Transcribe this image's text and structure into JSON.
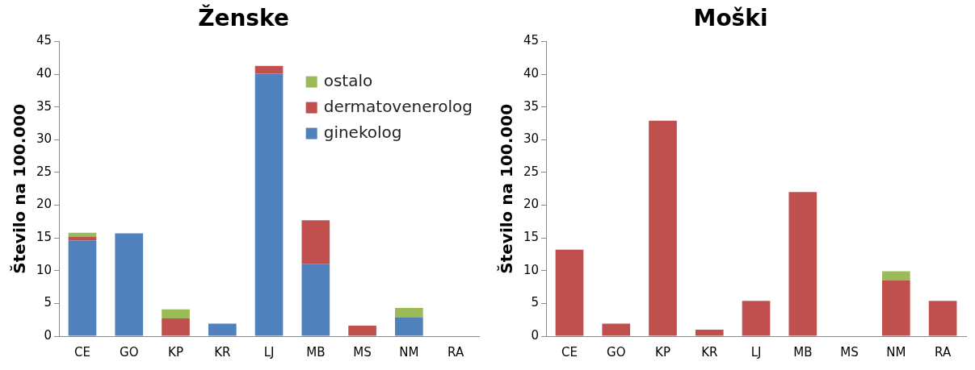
{
  "chart_data": [
    {
      "type": "bar",
      "title": "Ženske",
      "ylabel": "Število na 100.000",
      "categories": [
        "CE",
        "GO",
        "KP",
        "KR",
        "LJ",
        "MB",
        "MS",
        "NM",
        "RA"
      ],
      "stacked": true,
      "ylim": [
        0,
        45
      ],
      "yticks": [
        0,
        5,
        10,
        15,
        20,
        25,
        30,
        35,
        40,
        45
      ],
      "grid": false,
      "legend": "top right",
      "series": [
        {
          "name": "ginekolog",
          "color": "#4f81bd",
          "values": [
            14.6,
            15.7,
            null,
            1.9,
            40.1,
            11.0,
            null,
            2.9,
            null
          ]
        },
        {
          "name": "dermatovenerolog",
          "color": "#c0504d",
          "values": [
            0.6,
            null,
            2.7,
            null,
            1.2,
            6.7,
            1.6,
            null,
            null
          ]
        },
        {
          "name": "ostalo",
          "color": "#9bbb59",
          "values": [
            0.6,
            null,
            1.4,
            null,
            null,
            null,
            null,
            1.4,
            null
          ]
        }
      ]
    },
    {
      "type": "bar",
      "title": "Moški",
      "ylabel": "Število na 100.000",
      "categories": [
        "CE",
        "GO",
        "KP",
        "KR",
        "LJ",
        "MB",
        "MS",
        "NM",
        "RA"
      ],
      "stacked": true,
      "ylim": [
        0,
        45
      ],
      "yticks": [
        0,
        5,
        10,
        15,
        20,
        25,
        30,
        35,
        40,
        45
      ],
      "grid": false,
      "legend": false,
      "series": [
        {
          "color": "#c0504d",
          "values": [
            13.2,
            1.9,
            32.9,
            1.0,
            5.4,
            22.0,
            null,
            8.5,
            5.4
          ]
        },
        {
          "color": "#9bbb59",
          "values": [
            null,
            null,
            null,
            null,
            null,
            null,
            null,
            1.4,
            null
          ]
        }
      ]
    }
  ]
}
